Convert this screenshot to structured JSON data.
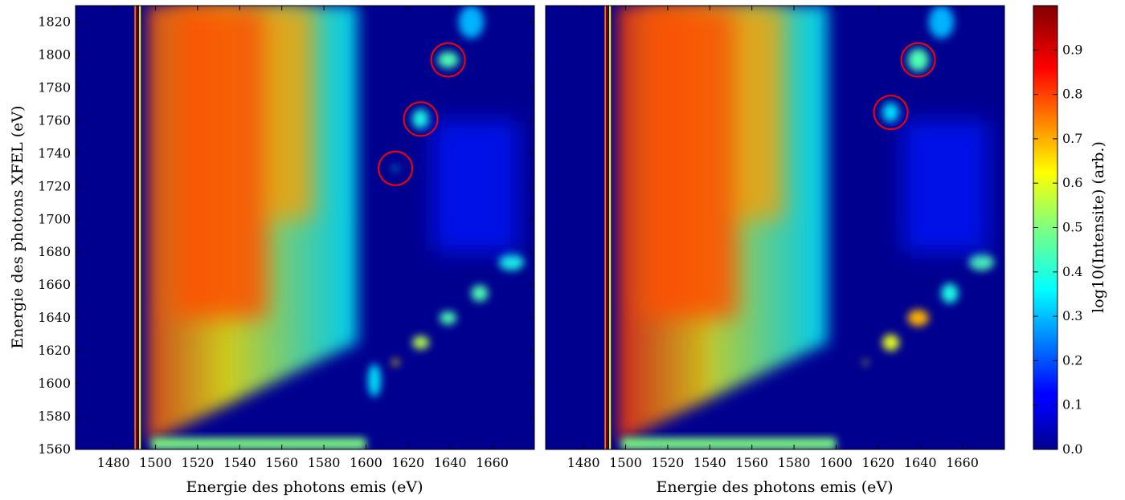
{
  "chart_data": [
    {
      "type": "heatmap",
      "xlabel": "Energie des photons emis (eV)",
      "ylabel": "Energie des photons XFEL (eV)",
      "xlim": [
        1462,
        1680
      ],
      "ylim": [
        1560,
        1830
      ],
      "xticks": [
        1480,
        1500,
        1520,
        1540,
        1560,
        1580,
        1600,
        1620,
        1640,
        1660
      ],
      "yticks": [
        1560,
        1580,
        1600,
        1620,
        1640,
        1660,
        1680,
        1700,
        1720,
        1740,
        1760,
        1780,
        1800,
        1820
      ],
      "highlighted_circles": [
        {
          "x": 1614,
          "y": 1731
        },
        {
          "x": 1626,
          "y": 1761
        },
        {
          "x": 1639,
          "y": 1797
        }
      ]
    },
    {
      "type": "heatmap",
      "xlabel": "Energie des photons emis (eV)",
      "ylabel": "",
      "xlim": [
        1462,
        1680
      ],
      "ylim": [
        1560,
        1830
      ],
      "xticks": [
        1480,
        1500,
        1520,
        1540,
        1560,
        1580,
        1600,
        1620,
        1640,
        1660
      ],
      "yticks": [],
      "highlighted_circles": [
        {
          "x": 1626,
          "y": 1765
        },
        {
          "x": 1639,
          "y": 1797
        }
      ]
    }
  ],
  "colorbar": {
    "label": "log10(Intensite) (arb.)",
    "range": [
      0.0,
      1.0
    ],
    "ticks": [
      "0.0",
      "0.1",
      "0.2",
      "0.3",
      "0.4",
      "0.5",
      "0.6",
      "0.7",
      "0.8",
      "0.9"
    ],
    "colormap": "jet"
  }
}
